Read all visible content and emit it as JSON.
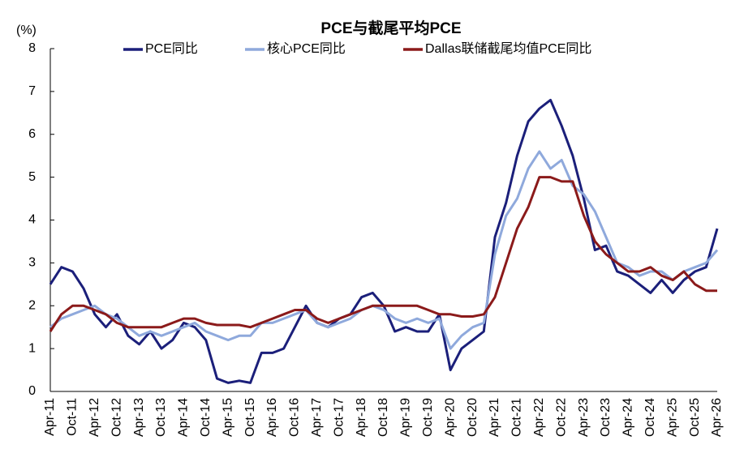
{
  "chart_data": {
    "type": "line",
    "title": "PCE与截尾平均PCE",
    "y_unit_label": "(%)",
    "categories": [
      "Apr-11",
      null,
      "Oct-11",
      null,
      "Apr-12",
      null,
      "Oct-12",
      null,
      "Apr-13",
      null,
      "Oct-13",
      null,
      "Apr-14",
      null,
      "Oct-14",
      null,
      "Apr-15",
      null,
      "Oct-15",
      null,
      "Apr-16",
      null,
      "Oct-16",
      null,
      "Apr-17",
      null,
      "Oct-17",
      null,
      "Apr-18",
      null,
      "Oct-18",
      null,
      "Apr-19",
      null,
      "Oct-19",
      null,
      "Apr-20",
      null,
      "Oct-20",
      null,
      "Apr-21",
      null,
      "Oct-21",
      null,
      "Apr-22",
      null,
      "Oct-22",
      null,
      "Apr-23",
      null,
      "Oct-23",
      null,
      "Apr-24",
      null,
      "Oct-24",
      null,
      "Apr-25",
      null,
      "Oct-25",
      null,
      "Apr-26"
    ],
    "series": [
      {
        "name": "PCE同比",
        "color": "#1b1f7a",
        "values": [
          2.5,
          2.9,
          2.8,
          2.4,
          1.8,
          1.5,
          1.8,
          1.3,
          1.1,
          1.4,
          1.0,
          1.2,
          1.6,
          1.5,
          1.2,
          0.3,
          0.2,
          0.25,
          0.2,
          0.9,
          0.9,
          1.0,
          1.5,
          2.0,
          1.6,
          1.5,
          1.7,
          1.8,
          2.2,
          2.3,
          2.0,
          1.4,
          1.5,
          1.4,
          1.4,
          1.8,
          0.5,
          1.0,
          1.2,
          1.4,
          3.6,
          4.4,
          5.5,
          6.3,
          6.6,
          6.8,
          6.2,
          5.5,
          4.5,
          3.3,
          3.4,
          2.8,
          2.7,
          2.5,
          2.3,
          2.6,
          2.3,
          2.6,
          2.8,
          2.9,
          3.8
        ]
      },
      {
        "name": "核心PCE同比",
        "color": "#8fa9dc",
        "values": [
          1.5,
          1.7,
          1.8,
          1.9,
          2.0,
          1.8,
          1.7,
          1.5,
          1.3,
          1.4,
          1.3,
          1.4,
          1.5,
          1.6,
          1.4,
          1.3,
          1.2,
          1.3,
          1.3,
          1.6,
          1.6,
          1.7,
          1.8,
          1.9,
          1.6,
          1.5,
          1.6,
          1.7,
          1.9,
          2.0,
          1.9,
          1.7,
          1.6,
          1.7,
          1.6,
          1.7,
          1.0,
          1.3,
          1.5,
          1.6,
          3.2,
          4.1,
          4.5,
          5.2,
          5.6,
          5.2,
          5.4,
          4.8,
          4.6,
          4.2,
          3.6,
          3.0,
          2.9,
          2.7,
          2.8,
          2.8,
          2.6,
          2.8,
          2.9,
          3.0,
          3.3
        ]
      },
      {
        "name": "Dallas联储截尾均值PCE同比",
        "color": "#8b1a1a",
        "values": [
          1.4,
          1.8,
          2.0,
          2.0,
          1.9,
          1.8,
          1.6,
          1.5,
          1.5,
          1.5,
          1.5,
          1.6,
          1.7,
          1.7,
          1.6,
          1.55,
          1.55,
          1.55,
          1.5,
          1.6,
          1.7,
          1.8,
          1.9,
          1.9,
          1.7,
          1.6,
          1.7,
          1.8,
          1.9,
          2.0,
          2.0,
          2.0,
          2.0,
          2.0,
          1.9,
          1.8,
          1.8,
          1.75,
          1.75,
          1.8,
          2.2,
          3.0,
          3.8,
          4.3,
          5.0,
          5.0,
          4.9,
          4.9,
          4.1,
          3.5,
          3.2,
          3.0,
          2.8,
          2.8,
          2.9,
          2.7,
          2.6,
          2.8,
          2.5,
          2.35,
          2.35
        ]
      }
    ],
    "ylim": [
      0,
      8
    ],
    "yticks": [
      0,
      1,
      2,
      3,
      4,
      5,
      6,
      7,
      8
    ],
    "grid": false
  }
}
